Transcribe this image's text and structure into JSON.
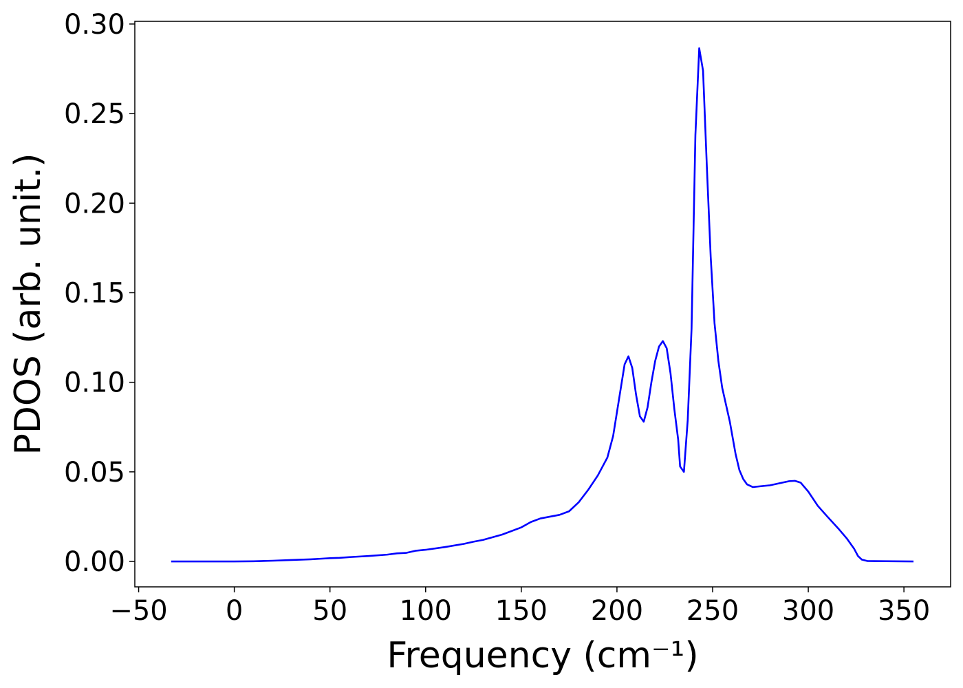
{
  "chart_data": {
    "type": "line",
    "xlabel": "Frequency (cm⁻¹)",
    "ylabel": "PDOS (arb. unit.)",
    "xlim": [
      -52,
      374.4
    ],
    "ylim": [
      -0.0142,
      0.3015
    ],
    "xticks": [
      {
        "value": -50,
        "label": "−50"
      },
      0,
      50,
      100,
      150,
      200,
      250,
      300,
      350
    ],
    "yticks": [
      {
        "value": 0,
        "label": "0.00"
      },
      {
        "value": 0.05,
        "label": "0.05"
      },
      {
        "value": 0.1,
        "label": "0.10"
      },
      {
        "value": 0.15,
        "label": "0.15"
      },
      {
        "value": 0.2,
        "label": "0.20"
      },
      {
        "value": 0.25,
        "label": "0.25"
      },
      {
        "value": 0.3,
        "label": "0.30"
      }
    ],
    "series": [
      {
        "color": "#0000ff",
        "x": [
          -33,
          0,
          10,
          20,
          30,
          40,
          45,
          50,
          55,
          60,
          70,
          80,
          85,
          90,
          95,
          100,
          110,
          120,
          125,
          130,
          140,
          150,
          155,
          160,
          170,
          175,
          180,
          185,
          190,
          195,
          198,
          201,
          204,
          206,
          208,
          210,
          212,
          214,
          216,
          218,
          220,
          222,
          224,
          226,
          228,
          230,
          232,
          233,
          235,
          237,
          239,
          241,
          243,
          245,
          247,
          249,
          251,
          253,
          255,
          259,
          262,
          264,
          266,
          268,
          271,
          280,
          290,
          293,
          296,
          300,
          305,
          310,
          316,
          320,
          324,
          326,
          328,
          331,
          355
        ],
        "values": [
          0,
          0,
          0.0001,
          0.0004,
          0.0008,
          0.0012,
          0.0015,
          0.0018,
          0.002,
          0.0024,
          0.003,
          0.0038,
          0.0045,
          0.0048,
          0.006,
          0.0065,
          0.008,
          0.0098,
          0.011,
          0.012,
          0.015,
          0.019,
          0.022,
          0.024,
          0.026,
          0.028,
          0.033,
          0.04,
          0.048,
          0.058,
          0.07,
          0.09,
          0.11,
          0.1145,
          0.108,
          0.093,
          0.081,
          0.078,
          0.086,
          0.1,
          0.112,
          0.12,
          0.123,
          0.119,
          0.105,
          0.085,
          0.068,
          0.053,
          0.05,
          0.079,
          0.13,
          0.238,
          0.2865,
          0.274,
          0.22,
          0.17,
          0.133,
          0.112,
          0.097,
          0.078,
          0.06,
          0.051,
          0.046,
          0.043,
          0.0415,
          0.0425,
          0.0448,
          0.045,
          0.044,
          0.039,
          0.031,
          0.025,
          0.018,
          0.013,
          0.007,
          0.003,
          0.001,
          0.0002,
          0
        ]
      }
    ]
  }
}
